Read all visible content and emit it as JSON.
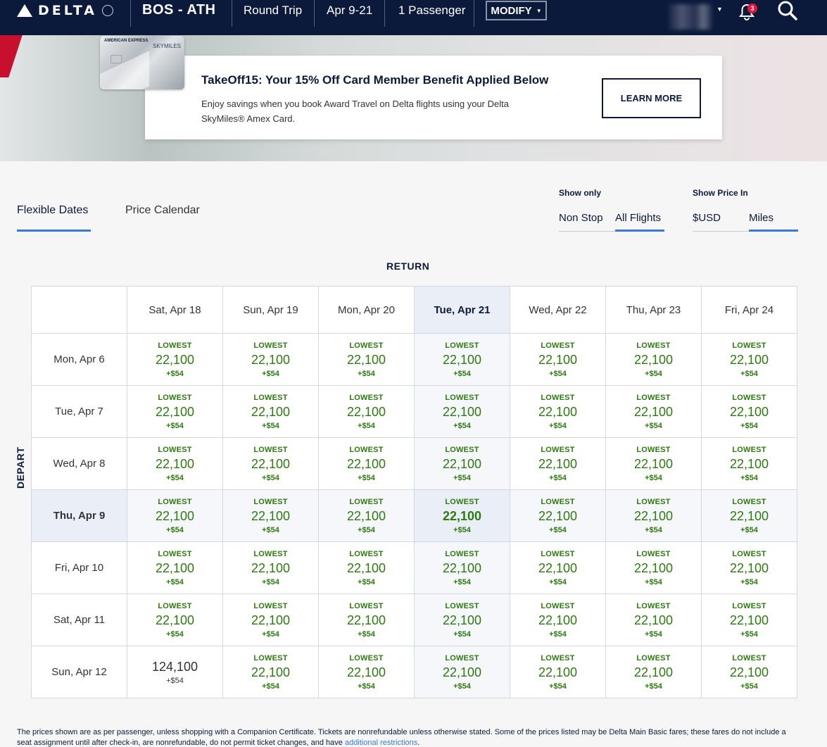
{
  "header": {
    "brand": "DELTA",
    "route": "BOS - ATH",
    "trip_type": "Round Trip",
    "dates": "Apr 9-21",
    "passengers": "1 Passenger",
    "modify_label": "MODIFY",
    "notification_count": "3"
  },
  "promo": {
    "card_brand": "AMERICAN EXPRESS",
    "card_program": "SKYMILES",
    "title": "TakeOff15: Your 15% Off Card Member Benefit Applied Below",
    "body": "Enjoy savings when you book Award Travel on Delta flights using your Delta SkyMiles® Amex Card.",
    "cta": "LEARN MORE"
  },
  "tabs": {
    "flexible": "Flexible Dates",
    "calendar": "Price Calendar"
  },
  "filters": {
    "show_only_label": "Show only",
    "non_stop": "Non Stop",
    "all_flights": "All Flights",
    "show_price_label": "Show Price In",
    "usd": "$USD",
    "miles": "Miles"
  },
  "grid": {
    "return_label": "RETURN",
    "depart_label": "DEPART",
    "return_dates": [
      "Sat, Apr 18",
      "Sun, Apr 19",
      "Mon, Apr 20",
      "Tue, Apr 21",
      "Wed, Apr 22",
      "Thu, Apr 23",
      "Fri, Apr 24"
    ],
    "depart_dates": [
      "Mon, Apr 6",
      "Tue, Apr 7",
      "Wed, Apr 8",
      "Thu, Apr 9",
      "Fri, Apr 10",
      "Sat, Apr 11",
      "Sun, Apr 12"
    ],
    "selected_return_index": 3,
    "selected_depart_index": 3,
    "lowest_label": "LOWEST",
    "cells": [
      [
        [
          "LOWEST",
          "22,100",
          "+$54"
        ],
        [
          "LOWEST",
          "22,100",
          "+$54"
        ],
        [
          "LOWEST",
          "22,100",
          "+$54"
        ],
        [
          "LOWEST",
          "22,100",
          "+$54"
        ],
        [
          "LOWEST",
          "22,100",
          "+$54"
        ],
        [
          "LOWEST",
          "22,100",
          "+$54"
        ],
        [
          "LOWEST",
          "22,100",
          "+$54"
        ]
      ],
      [
        [
          "LOWEST",
          "22,100",
          "+$54"
        ],
        [
          "LOWEST",
          "22,100",
          "+$54"
        ],
        [
          "LOWEST",
          "22,100",
          "+$54"
        ],
        [
          "LOWEST",
          "22,100",
          "+$54"
        ],
        [
          "LOWEST",
          "22,100",
          "+$54"
        ],
        [
          "LOWEST",
          "22,100",
          "+$54"
        ],
        [
          "LOWEST",
          "22,100",
          "+$54"
        ]
      ],
      [
        [
          "LOWEST",
          "22,100",
          "+$54"
        ],
        [
          "LOWEST",
          "22,100",
          "+$54"
        ],
        [
          "LOWEST",
          "22,100",
          "+$54"
        ],
        [
          "LOWEST",
          "22,100",
          "+$54"
        ],
        [
          "LOWEST",
          "22,100",
          "+$54"
        ],
        [
          "LOWEST",
          "22,100",
          "+$54"
        ],
        [
          "LOWEST",
          "22,100",
          "+$54"
        ]
      ],
      [
        [
          "LOWEST",
          "22,100",
          "+$54"
        ],
        [
          "LOWEST",
          "22,100",
          "+$54"
        ],
        [
          "LOWEST",
          "22,100",
          "+$54"
        ],
        [
          "LOWEST",
          "22,100",
          "+$54"
        ],
        [
          "LOWEST",
          "22,100",
          "+$54"
        ],
        [
          "LOWEST",
          "22,100",
          "+$54"
        ],
        [
          "LOWEST",
          "22,100",
          "+$54"
        ]
      ],
      [
        [
          "LOWEST",
          "22,100",
          "+$54"
        ],
        [
          "LOWEST",
          "22,100",
          "+$54"
        ],
        [
          "LOWEST",
          "22,100",
          "+$54"
        ],
        [
          "LOWEST",
          "22,100",
          "+$54"
        ],
        [
          "LOWEST",
          "22,100",
          "+$54"
        ],
        [
          "LOWEST",
          "22,100",
          "+$54"
        ],
        [
          "LOWEST",
          "22,100",
          "+$54"
        ]
      ],
      [
        [
          "LOWEST",
          "22,100",
          "+$54"
        ],
        [
          "LOWEST",
          "22,100",
          "+$54"
        ],
        [
          "LOWEST",
          "22,100",
          "+$54"
        ],
        [
          "LOWEST",
          "22,100",
          "+$54"
        ],
        [
          "LOWEST",
          "22,100",
          "+$54"
        ],
        [
          "LOWEST",
          "22,100",
          "+$54"
        ],
        [
          "LOWEST",
          "22,100",
          "+$54"
        ]
      ],
      [
        [
          "",
          "124,100",
          "+$54"
        ],
        [
          "LOWEST",
          "22,100",
          "+$54"
        ],
        [
          "LOWEST",
          "22,100",
          "+$54"
        ],
        [
          "LOWEST",
          "22,100",
          "+$54"
        ],
        [
          "LOWEST",
          "22,100",
          "+$54"
        ],
        [
          "LOWEST",
          "22,100",
          "+$54"
        ],
        [
          "LOWEST",
          "22,100",
          "+$54"
        ]
      ]
    ]
  },
  "footnote": {
    "text": "The prices shown are as per passenger, unless shopping with a Companion Certificate. Tickets are nonrefundable unless otherwise stated. Some of the prices listed may be Delta Main Basic fares; these fares do not include a seat assignment until after check-in, are nonrefundable, do not permit ticket changes, and have ",
    "link": "additional restrictions",
    "end": "."
  },
  "colors": {
    "navy": "#0b1a3b",
    "accent_blue": "#3b7ad6",
    "price_green": "#2d7a0f",
    "alert_red": "#e31837"
  }
}
